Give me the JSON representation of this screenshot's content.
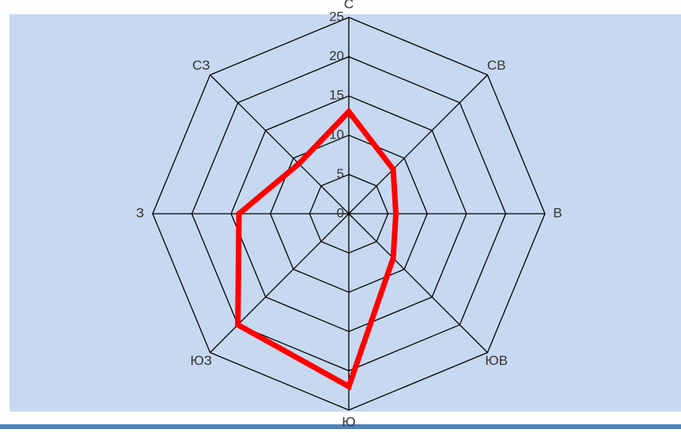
{
  "chart_data": {
    "type": "radar",
    "categories": [
      "С",
      "СВ",
      "В",
      "ЮВ",
      "Ю",
      "ЮЗ",
      "З",
      "СЗ"
    ],
    "series": [
      {
        "color": "#ff0000",
        "values": [
          13,
          8,
          6,
          8,
          22,
          20,
          14,
          9
        ]
      }
    ],
    "ylim": [
      0,
      25
    ],
    "yticks": [
      0,
      5,
      10,
      15,
      20,
      25
    ],
    "grid": true
  }
}
